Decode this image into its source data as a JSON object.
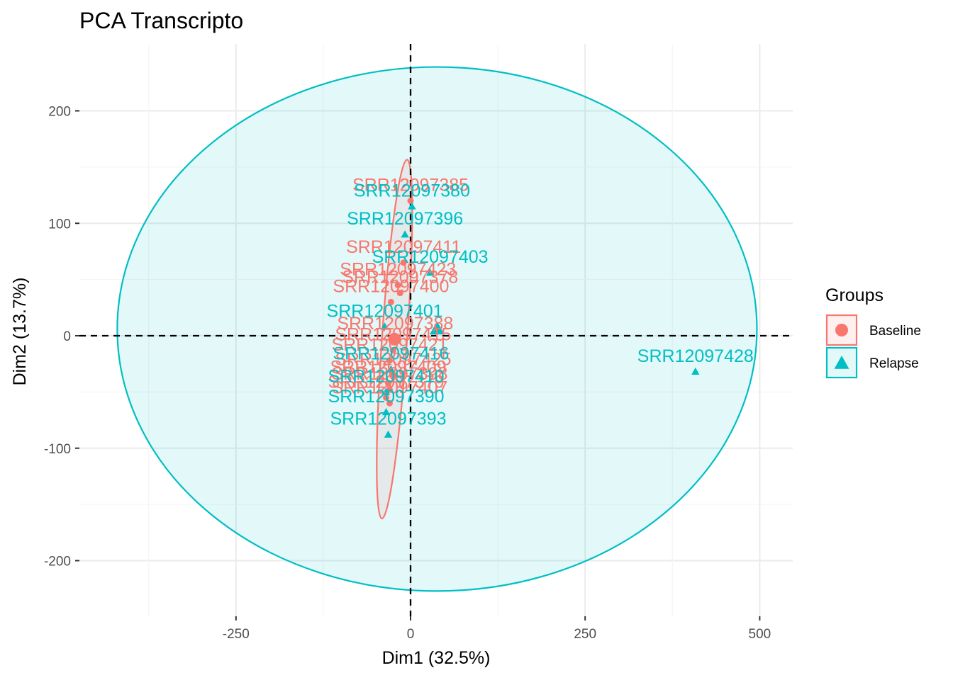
{
  "chart_data": {
    "type": "scatter",
    "title": "PCA Transcripto",
    "xlabel": "Dim1 (32.5%)",
    "ylabel": "Dim2 (13.7%)",
    "xlim": [
      -475,
      550
    ],
    "ylim": [
      -250,
      250
    ],
    "x_ticks": [
      -250,
      0,
      250,
      500
    ],
    "y_ticks": [
      -200,
      -100,
      0,
      100,
      200
    ],
    "grid": true,
    "reference_lines": {
      "x": 0,
      "y": 0,
      "style": "dashed"
    },
    "legend": {
      "title": "Groups",
      "placement": "right"
    },
    "series": [
      {
        "name": "Baseline",
        "color": "#F8766D",
        "marker": "circle",
        "points": [
          {
            "label": "SRR12097385",
            "x": 0,
            "y": 120
          },
          {
            "label": "SRR12097411",
            "x": -10,
            "y": 65
          },
          {
            "label": "SRR12097423",
            "x": -18,
            "y": 45
          },
          {
            "label": "SRR12097378",
            "x": -15,
            "y": 38
          },
          {
            "label": "SRR12097400",
            "x": -28,
            "y": 30
          },
          {
            "label": "SRR12097388",
            "x": -22,
            "y": -3
          },
          {
            "label": "SRR12097415",
            "x": -25,
            "y": -13
          },
          {
            "label": "SRR12097421",
            "x": -30,
            "y": -22
          },
          {
            "label": "SRR12097425",
            "x": -25,
            "y": -35
          },
          {
            "label": "SRR12097409",
            "x": -32,
            "y": -42
          },
          {
            "label": "SRR12097398",
            "x": -30,
            "y": -48
          },
          {
            "label": "SRR12097379",
            "x": -35,
            "y": -55
          },
          {
            "label": "SRR12097407",
            "x": -30,
            "y": -60
          }
        ],
        "centroid": {
          "x": -23,
          "y": -3
        },
        "ellipse": {
          "center": [
            -23,
            -3
          ],
          "rx": 160,
          "ry": 18,
          "angle_deg": 86
        }
      },
      {
        "name": "Relapse",
        "color": "#00BFC4",
        "marker": "triangle",
        "points": [
          {
            "label": "SRR12097380",
            "x": 2,
            "y": 115
          },
          {
            "label": "SRR12097396",
            "x": -8,
            "y": 90
          },
          {
            "label": "SRR12097403",
            "x": 28,
            "y": 56
          },
          {
            "label": "SRR12097401",
            "x": -37,
            "y": 8
          },
          {
            "label": "SRR12097416",
            "x": -28,
            "y": -30
          },
          {
            "label": "SRR12097410",
            "x": -35,
            "y": -50
          },
          {
            "label": "SRR12097390",
            "x": -35,
            "y": -68
          },
          {
            "label": "SRR12097393",
            "x": -32,
            "y": -88
          },
          {
            "label": "SRR12097428",
            "x": 408,
            "y": -32
          }
        ],
        "centroid": {
          "x": 38,
          "y": 6
        },
        "ellipse": {
          "center": [
            38,
            6
          ],
          "rx": 458,
          "ry": 233,
          "angle_deg": 0
        }
      }
    ]
  }
}
